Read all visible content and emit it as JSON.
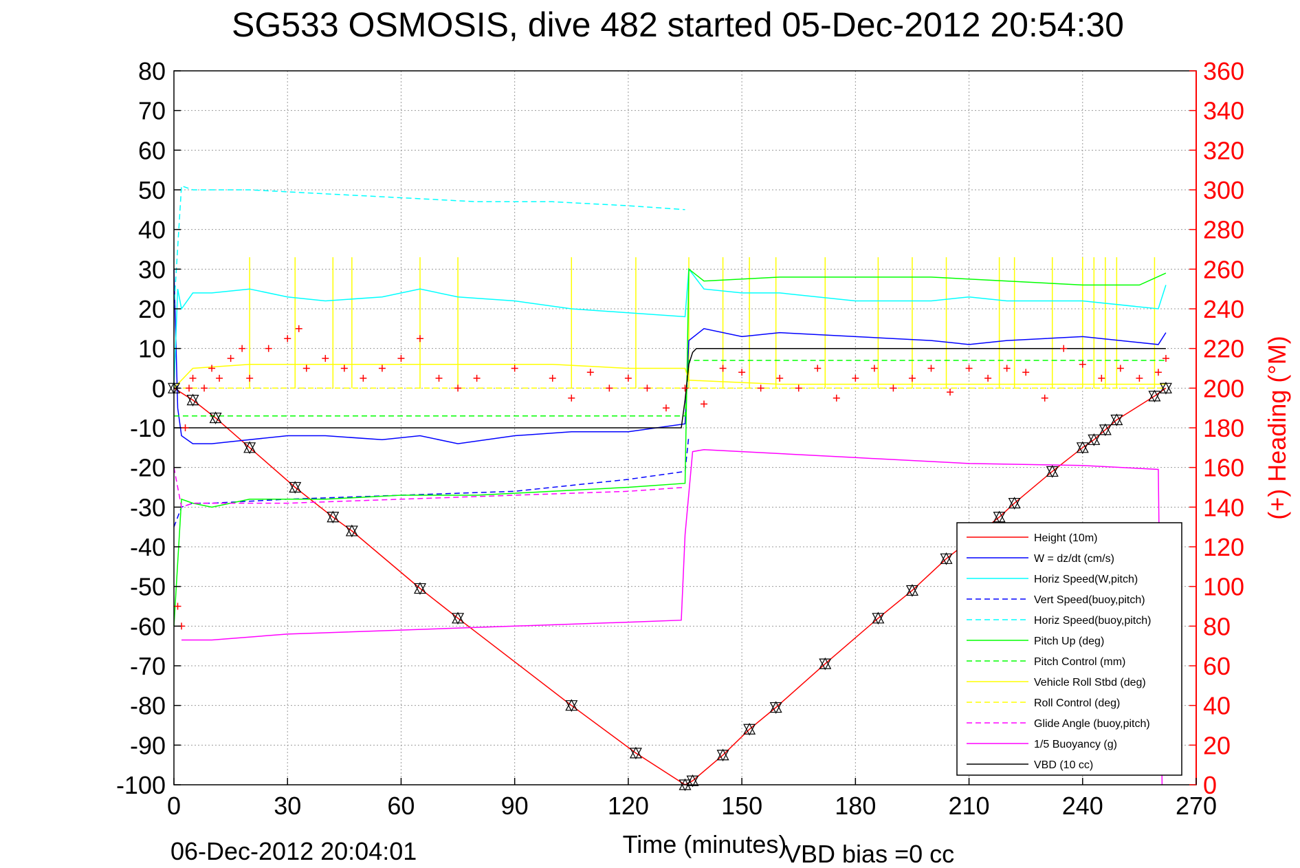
{
  "chart_data": {
    "type": "line",
    "title": "SG533 OSMOSIS, dive 482 started 05-Dec-2012 20:54:30",
    "xlabel": "Time (minutes)",
    "ylabel_right": "(+) Heading (°M)",
    "xlim": [
      0,
      270
    ],
    "ylim": [
      -100,
      80
    ],
    "ylim_right": [
      0,
      360
    ],
    "x_ticks": [
      "0",
      "30",
      "60",
      "90",
      "120",
      "150",
      "180",
      "210",
      "240",
      "270"
    ],
    "y_ticks": [
      "80",
      "70",
      "60",
      "50",
      "40",
      "30",
      "20",
      "10",
      "0",
      "-10",
      "-20",
      "-30",
      "-40",
      "-50",
      "-60",
      "-70",
      "-80",
      "-90",
      "-100"
    ],
    "y_right_ticks": [
      "360",
      "340",
      "320",
      "300",
      "280",
      "260",
      "240",
      "220",
      "200",
      "180",
      "160",
      "140",
      "120",
      "100",
      "80",
      "60",
      "40",
      "20",
      "0"
    ],
    "grid": true,
    "legend_position": "bottom-right",
    "footer_left": "06-Dec-2012 20:04:01",
    "footer_right": "VBD bias =0 cc",
    "series": [
      {
        "name": "Height (10m)",
        "color": "#ff0000",
        "dash": "solid",
        "x": [
          0,
          5,
          11,
          20,
          32,
          42,
          47,
          65,
          75,
          105,
          122,
          135,
          137,
          145,
          152,
          159,
          172,
          186,
          195,
          204,
          218,
          222,
          232,
          240,
          243,
          246,
          249,
          259,
          262
        ],
        "y": [
          0,
          -3,
          -7.5,
          -15,
          -25,
          -32.5,
          -36,
          -50.5,
          -58,
          -80,
          -92,
          -100,
          -99,
          -92.5,
          -86,
          -80.5,
          -69.5,
          -58,
          -51,
          -43,
          -32.5,
          -29,
          -21,
          -15,
          -13,
          -10.5,
          -8,
          -2,
          0
        ]
      },
      {
        "name": "W = dz/dt (cm/s)",
        "color": "#0000ff",
        "dash": "solid",
        "x": [
          0,
          1,
          2,
          5,
          10,
          20,
          30,
          40,
          55,
          65,
          75,
          90,
          105,
          120,
          135,
          136,
          140,
          150,
          160,
          180,
          200,
          210,
          220,
          240,
          260,
          262
        ],
        "y": [
          30,
          -5,
          -12,
          -14,
          -14,
          -13,
          -12,
          -12,
          -13,
          -12,
          -14,
          -12,
          -11,
          -11,
          -9,
          12,
          15,
          13,
          14,
          13,
          12,
          11,
          12,
          13,
          11,
          14
        ]
      },
      {
        "name": "Horiz Speed(W,pitch)",
        "color": "#00ffff",
        "dash": "solid",
        "x": [
          0,
          1,
          2,
          5,
          10,
          20,
          30,
          40,
          55,
          65,
          75,
          90,
          105,
          120,
          135,
          136,
          140,
          150,
          160,
          180,
          200,
          210,
          220,
          240,
          260,
          262
        ],
        "y": [
          0,
          25,
          20,
          24,
          24,
          25,
          23,
          22,
          23,
          25,
          23,
          22,
          20,
          19,
          18,
          30,
          25,
          24,
          24,
          22,
          22,
          23,
          22,
          22,
          20,
          26
        ]
      },
      {
        "name": "Vert Speed(buoy,pitch)",
        "color": "#0000ff",
        "dash": "dashed",
        "x": [
          0,
          2,
          5,
          10,
          30,
          60,
          90,
          120,
          135,
          136
        ],
        "y": [
          -35,
          -30,
          -29,
          -29,
          -28,
          -27,
          -26,
          -23,
          -21,
          -12
        ]
      },
      {
        "name": "Horiz Speed(buoy,pitch)",
        "color": "#00ffff",
        "dash": "dashed",
        "x": [
          0,
          2,
          5,
          10,
          20,
          40,
          60,
          80,
          100,
          120,
          135
        ],
        "y": [
          20,
          51,
          50,
          50,
          50,
          49,
          48,
          47,
          47,
          46,
          45
        ]
      },
      {
        "name": "Pitch Up (deg)",
        "color": "#00ff00",
        "dash": "solid",
        "x": [
          0,
          2,
          5,
          10,
          20,
          40,
          60,
          80,
          100,
          120,
          135,
          136,
          140,
          160,
          180,
          200,
          220,
          240,
          255,
          262
        ],
        "y": [
          -60,
          -28,
          -29,
          -30,
          -28,
          -28,
          -27,
          -27,
          -26,
          -25,
          -24,
          30,
          27,
          28,
          28,
          28,
          27,
          26,
          26,
          29
        ]
      },
      {
        "name": "Pitch Control (mm)",
        "color": "#00ff00",
        "dash": "dashed",
        "x": [
          0,
          5,
          135,
          136,
          262
        ],
        "y": [
          -7,
          -7,
          -7,
          7,
          7
        ]
      },
      {
        "name": "Vehicle Roll Stbd (deg)",
        "color": "#ffff00",
        "dash": "solid",
        "x": [
          0,
          5,
          20,
          40,
          60,
          80,
          100,
          120,
          135,
          136,
          160,
          200,
          240,
          262
        ],
        "y": [
          0,
          5,
          6,
          6,
          6,
          6,
          6,
          5,
          5,
          2,
          1,
          1,
          1,
          1
        ]
      },
      {
        "name": "Roll Control (deg)",
        "color": "#ffff00",
        "dash": "dashed",
        "x": [
          0,
          262
        ],
        "y": [
          0,
          0
        ]
      },
      {
        "name": "Glide Angle (buoy,pitch)",
        "color": "#ff00ff",
        "dash": "dashed",
        "x": [
          0,
          2,
          5,
          10,
          30,
          60,
          90,
          120,
          135
        ],
        "y": [
          -20,
          -30,
          -29,
          -29,
          -29,
          -28,
          -27,
          -26,
          -25
        ]
      },
      {
        "name": "1/5 Buoyancy (g)",
        "color": "#ff00ff",
        "dash": "solid",
        "x": [
          2,
          10,
          30,
          60,
          90,
          120,
          134,
          135,
          137,
          140,
          150,
          180,
          210,
          240,
          260,
          261
        ],
        "y": [
          -63.5,
          -63.5,
          -62,
          -61,
          -60,
          -59,
          -58.5,
          -37,
          -16,
          -15.5,
          -16,
          -17.5,
          -19,
          -19.5,
          -20.5,
          -100
        ]
      },
      {
        "name": "VBD (10 cc)",
        "color": "#000000",
        "dash": "solid",
        "x": [
          0,
          1,
          2,
          134,
          135,
          136,
          137,
          138,
          262
        ],
        "y": [
          -10,
          -10,
          -10,
          -10,
          -3,
          6,
          9,
          10,
          10
        ]
      }
    ],
    "heading_series": {
      "color": "#ff0000",
      "marker": "+",
      "x": [
        1,
        2,
        3,
        4,
        5,
        8,
        10,
        12,
        15,
        18,
        20,
        25,
        30,
        33,
        35,
        40,
        45,
        50,
        55,
        60,
        65,
        70,
        75,
        80,
        90,
        100,
        105,
        110,
        115,
        120,
        125,
        130,
        135,
        140,
        145,
        150,
        155,
        160,
        165,
        170,
        175,
        180,
        185,
        190,
        195,
        200,
        205,
        210,
        215,
        220,
        225,
        230,
        235,
        240,
        245,
        250,
        255,
        260,
        262
      ],
      "y": [
        90,
        80,
        180,
        200,
        205,
        200,
        210,
        205,
        215,
        220,
        205,
        220,
        225,
        230,
        210,
        215,
        210,
        205,
        210,
        215,
        225,
        205,
        200,
        205,
        210,
        205,
        195,
        208,
        200,
        205,
        200,
        190,
        200,
        192,
        210,
        208,
        200,
        205,
        200,
        210,
        195,
        205,
        210,
        200,
        205,
        210,
        198,
        210,
        205,
        210,
        208,
        195,
        220,
        212,
        205,
        210,
        205,
        208,
        215
      ]
    },
    "spike_series": {
      "color": "#ffff00",
      "x": [
        20,
        32,
        42,
        47,
        65,
        75,
        105,
        122,
        136,
        145,
        152,
        159,
        172,
        186,
        195,
        204,
        218,
        222,
        232,
        240,
        243,
        246,
        249,
        259
      ]
    }
  }
}
